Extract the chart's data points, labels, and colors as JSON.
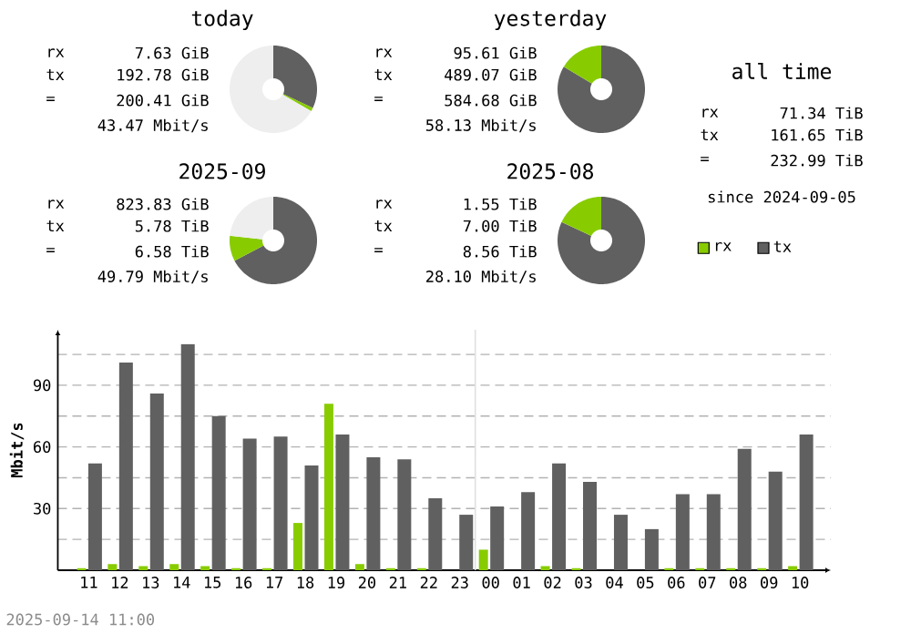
{
  "chart_data": [
    {
      "type": "donut",
      "title": "today",
      "categories": [
        null,
        null,
        null
      ],
      "values": [
        32.07,
        1.27,
        66.66
      ],
      "colors": [
        "#606060",
        "#88cc00",
        "#eeeeee"
      ],
      "annotations": [
        "rx",
        "7.63 GiB",
        "tx",
        "192.78 GiB",
        "=",
        "200.41 GiB",
        "43.47 Mbit/s"
      ]
    },
    {
      "type": "donut",
      "title": "yesterday",
      "categories": [
        null,
        null
      ],
      "values": [
        83.65,
        16.35
      ],
      "colors": [
        "#606060",
        "#88cc00"
      ],
      "annotations": [
        "rx",
        "95.61 GiB",
        "tx",
        "489.07 GiB",
        "=",
        "584.68 GiB",
        "58.13 Mbit/s"
      ]
    },
    {
      "type": "donut",
      "title": "2025-09",
      "categories": [
        null,
        null,
        null
      ],
      "values": [
        67.32,
        9.38,
        23.3
      ],
      "colors": [
        "#606060",
        "#88cc00",
        "#eeeeee"
      ],
      "annotations": [
        "rx",
        "823.83 GiB",
        "tx",
        "5.78 TiB",
        "=",
        "6.58 TiB",
        "49.79 Mbit/s"
      ]
    },
    {
      "type": "donut",
      "title": "2025-08",
      "categories": [
        null,
        null
      ],
      "values": [
        81.9,
        18.1
      ],
      "colors": [
        "#606060",
        "#88cc00"
      ],
      "annotations": [
        "rx",
        "1.55 TiB",
        "tx",
        "7.00 TiB",
        "=",
        "8.56 TiB",
        "28.10 Mbit/s"
      ]
    },
    {
      "type": "other",
      "title": "all time",
      "annotations": [
        "rx",
        "71.34 TiB",
        "tx",
        "161.65 TiB",
        "=",
        "232.99 TiB",
        "since 2024-09-05"
      ]
    },
    {
      "type": "bar",
      "ylabel": "Mbit/s",
      "categories": [
        "11",
        "12",
        "13",
        "14",
        "15",
        "16",
        "17",
        "18",
        "19",
        "20",
        "21",
        "22",
        "23",
        "00",
        "01",
        "02",
        "03",
        "04",
        "05",
        "06",
        "07",
        "08",
        "09",
        "10"
      ],
      "series": [
        {
          "name": "rx",
          "color": "#88cc00",
          "values": [
            1,
            3,
            2,
            3,
            2,
            1,
            1,
            23,
            81,
            3,
            1,
            1,
            0,
            10,
            0,
            2,
            1,
            0,
            0,
            1,
            1,
            1,
            1,
            2
          ]
        },
        {
          "name": "tx",
          "color": "#606060",
          "values": [
            52,
            101,
            86,
            110,
            75,
            64,
            65,
            51,
            66,
            55,
            54,
            35,
            27,
            31,
            38,
            52,
            43,
            27,
            20,
            37,
            37,
            59,
            48,
            66
          ]
        }
      ],
      "ylim": [
        0,
        117
      ],
      "yticks": [
        {
          "value": 15,
          "label": null
        },
        30,
        {
          "value": 45,
          "label": null
        },
        60,
        {
          "value": 75,
          "label": null
        },
        90,
        {
          "value": 105,
          "label": null
        }
      ],
      "grid": "y",
      "legend": "top right",
      "ref_lines": [
        {
          "axis": "x",
          "value": "00",
          "color": "#e0e0e0"
        }
      ],
      "annotations": [
        "2025-09-14 11:00"
      ]
    }
  ]
}
